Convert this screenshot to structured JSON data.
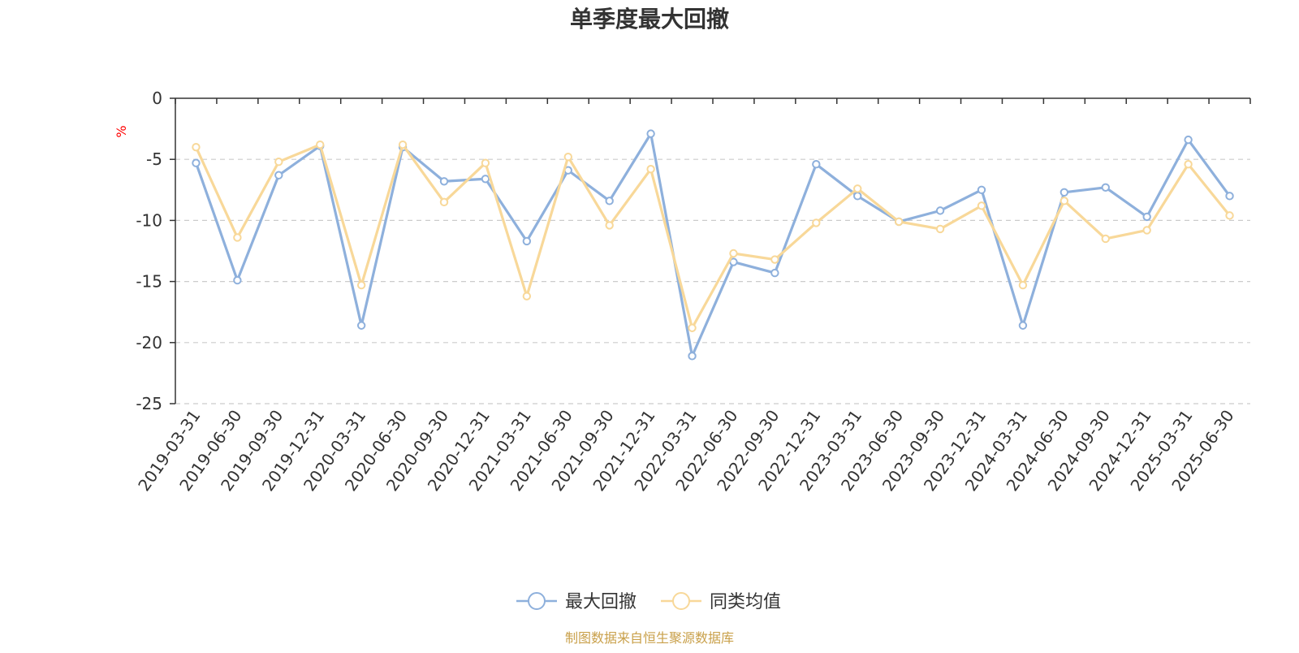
{
  "chart_data": {
    "type": "line",
    "title": "单季度最大回撤",
    "ylabel": "%",
    "xlabel": "",
    "ylim": [
      -25,
      0
    ],
    "yticks": [
      0,
      -5,
      -10,
      -15,
      -20,
      -25
    ],
    "grid": true,
    "legend_position": "bottom",
    "categories": [
      "2019-03-31",
      "2019-06-30",
      "2019-09-30",
      "2019-12-31",
      "2020-03-31",
      "2020-06-30",
      "2020-09-30",
      "2020-12-31",
      "2021-03-31",
      "2021-06-30",
      "2021-09-30",
      "2021-12-31",
      "2022-03-31",
      "2022-06-30",
      "2022-09-30",
      "2022-12-31",
      "2023-03-31",
      "2023-06-30",
      "2023-09-30",
      "2023-12-31",
      "2024-03-31",
      "2024-06-30",
      "2024-09-30",
      "2024-12-31",
      "2025-03-31",
      "2025-06-30"
    ],
    "series": [
      {
        "name": "最大回撤",
        "color": "#8eb0dc",
        "values": [
          -5.3,
          -14.9,
          -6.3,
          -3.9,
          -18.6,
          -4.0,
          -6.8,
          -6.6,
          -11.7,
          -5.9,
          -8.4,
          -2.9,
          -21.1,
          -13.4,
          -14.3,
          -5.4,
          -8.0,
          -10.1,
          -9.2,
          -7.5,
          -18.6,
          -7.7,
          -7.3,
          -9.7,
          -3.4,
          -8.0
        ]
      },
      {
        "name": "同类均值",
        "color": "#f8d899",
        "values": [
          -4.0,
          -11.4,
          -5.2,
          -3.8,
          -15.3,
          -3.8,
          -8.5,
          -5.3,
          -16.2,
          -4.8,
          -10.4,
          -5.8,
          -18.8,
          -12.7,
          -13.2,
          -10.2,
          -7.4,
          -10.1,
          -10.7,
          -8.8,
          -15.3,
          -8.4,
          -11.5,
          -10.8,
          -5.4,
          -9.6
        ]
      }
    ]
  },
  "footer": {
    "source_text": "制图数据来自恒生聚源数据库",
    "source_color": "#c9a04a"
  },
  "colors": {
    "axis": "#333333",
    "grid": "#cccccc",
    "ylabel": "#ff0000",
    "title": "#333333"
  }
}
